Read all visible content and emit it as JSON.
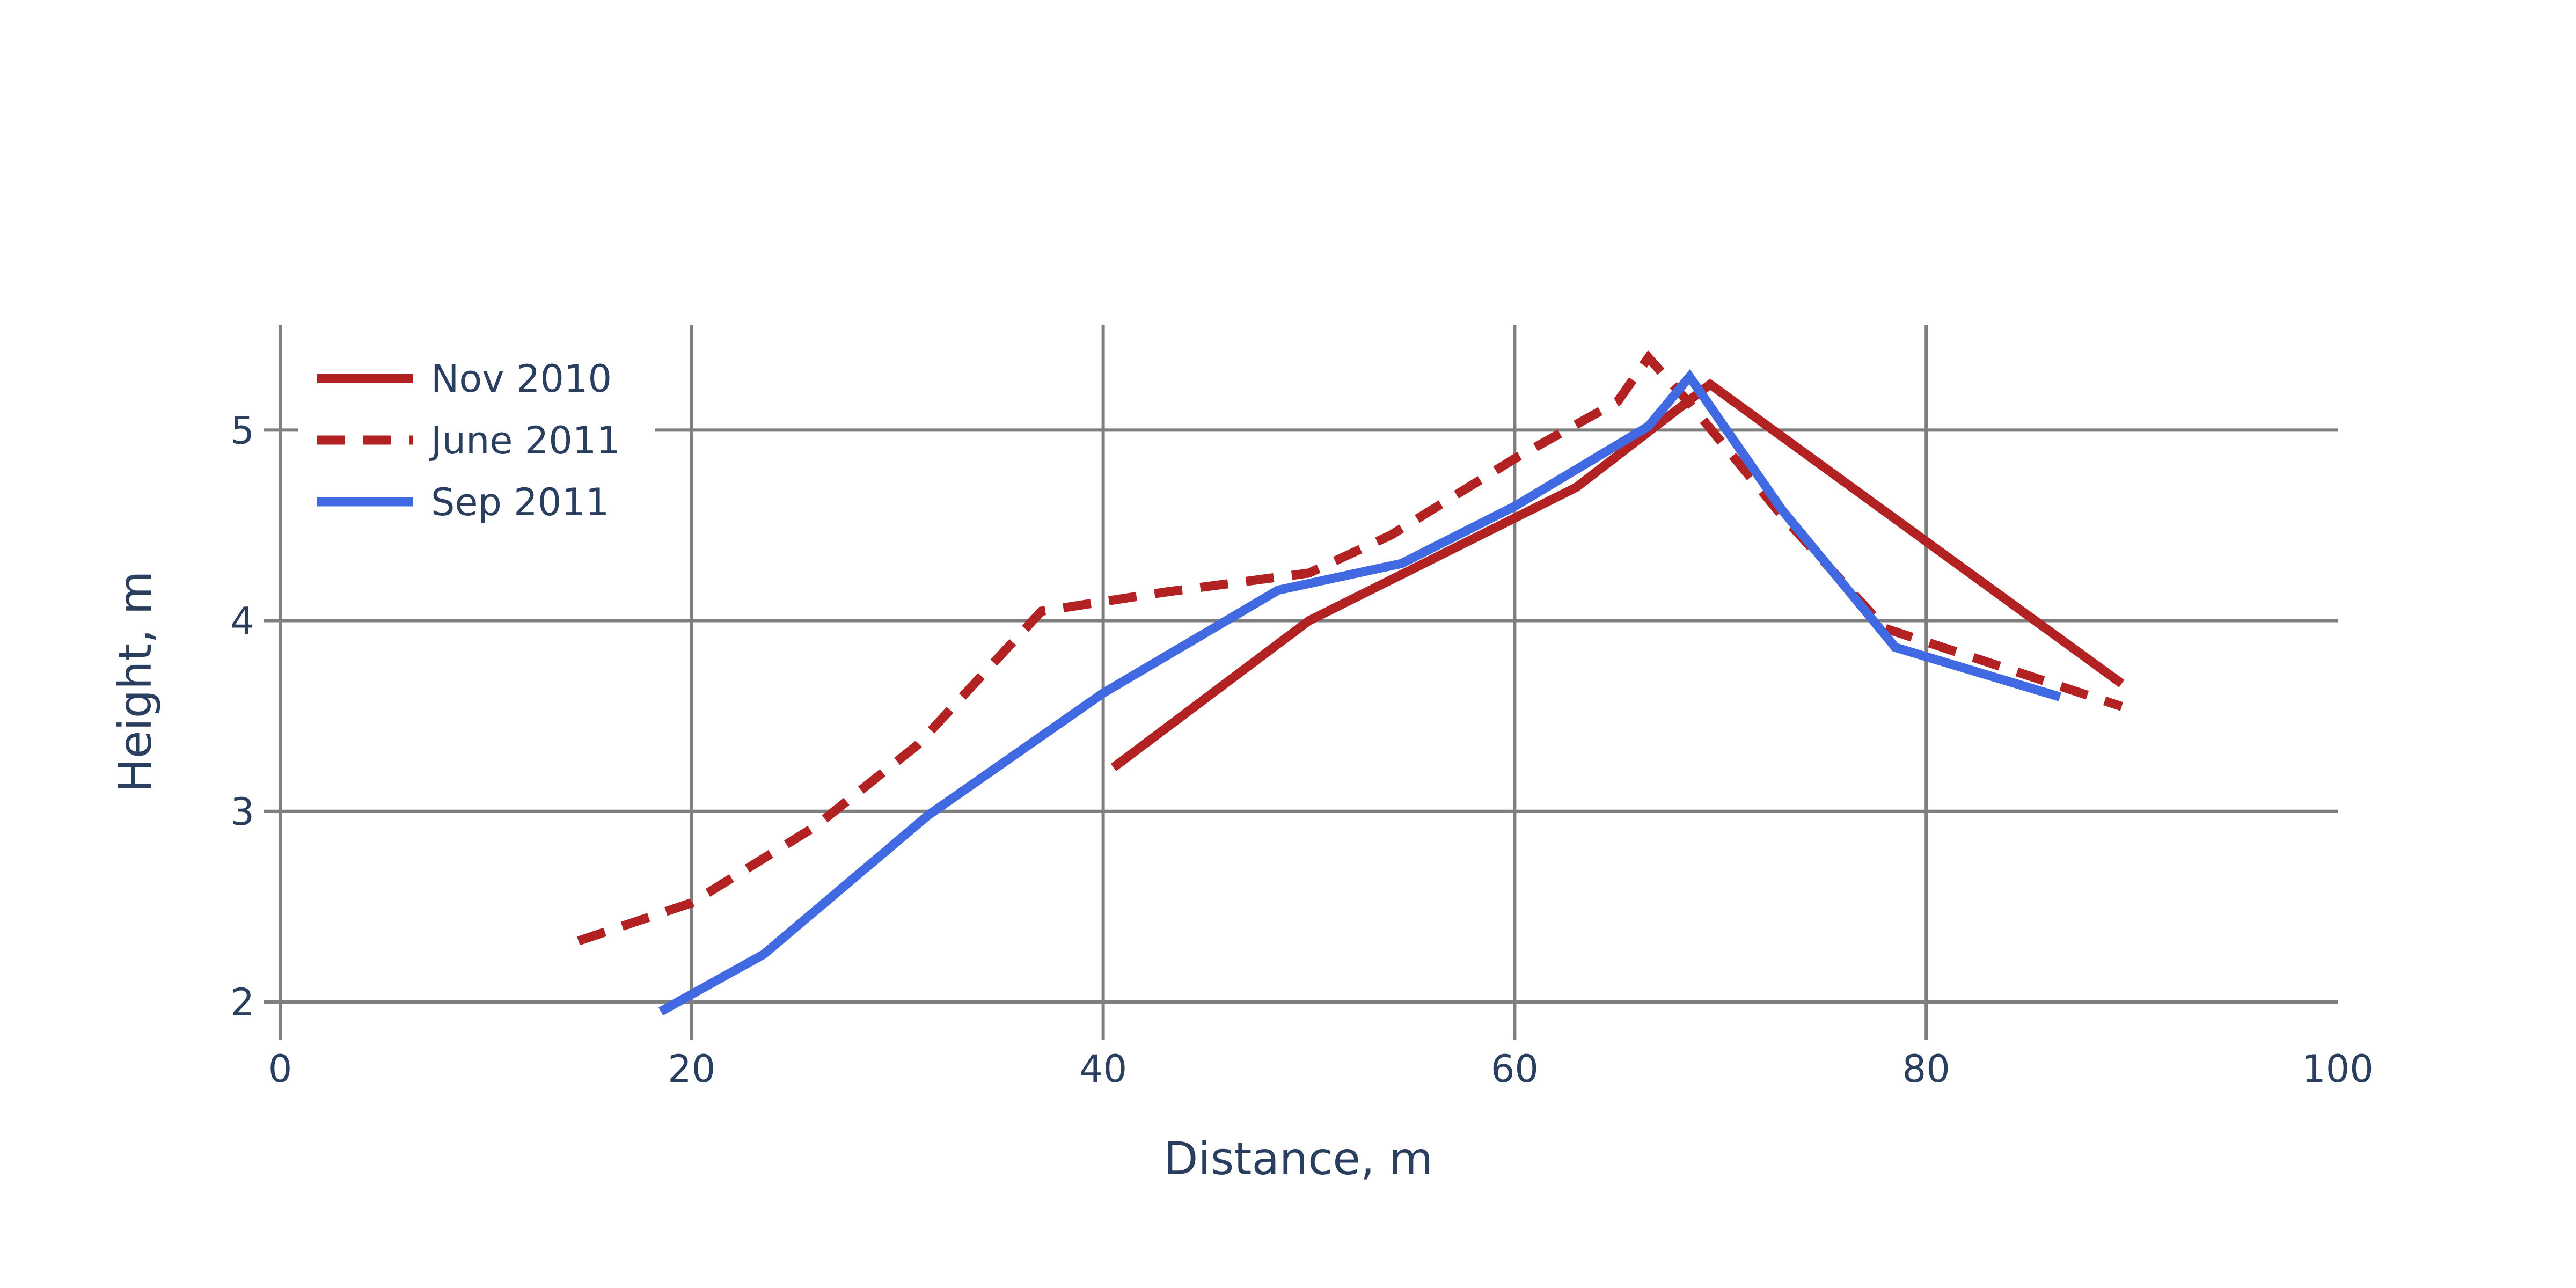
{
  "chart_data": {
    "type": "line",
    "title": "",
    "xlabel": "Distance, m",
    "ylabel": "Height, m",
    "xlim": [
      0,
      100
    ],
    "ylim": [
      1.8,
      5.55
    ],
    "x_ticks": [
      0,
      20,
      40,
      60,
      80,
      100
    ],
    "y_ticks": [
      2,
      3,
      4,
      5
    ],
    "x_tick_labels": [
      "0",
      "20",
      "40",
      "60",
      "80",
      "100"
    ],
    "y_tick_labels": [
      "2",
      "3",
      "4",
      "5"
    ],
    "grid": true,
    "legend_position": "top-left",
    "series": [
      {
        "name": "Nov 2010",
        "color": "#b22222",
        "dash": "solid",
        "x": [
          40.5,
          50,
          63,
          69.5,
          89.5
        ],
        "y": [
          3.23,
          4.0,
          4.7,
          5.24,
          3.67
        ]
      },
      {
        "name": "June 2011",
        "color": "#b22222",
        "dash": "dash",
        "x": [
          14.5,
          20,
          26,
          31,
          37,
          43,
          50,
          54,
          60,
          65,
          66.5,
          68.5,
          73,
          78,
          89.5
        ],
        "y": [
          2.32,
          2.52,
          2.92,
          3.35,
          4.05,
          4.15,
          4.25,
          4.45,
          4.85,
          5.15,
          5.38,
          5.14,
          4.55,
          3.96,
          3.55
        ]
      },
      {
        "name": "Sep 2011",
        "color": "#4169e1",
        "dash": "solid",
        "x": [
          18.5,
          23.5,
          31.5,
          40,
          48.5,
          54.5,
          60,
          66.5,
          68.5,
          73,
          78.5,
          86.5
        ],
        "y": [
          1.95,
          2.25,
          2.98,
          3.62,
          4.16,
          4.3,
          4.6,
          5.02,
          5.28,
          4.58,
          3.86,
          3.6
        ]
      }
    ]
  }
}
